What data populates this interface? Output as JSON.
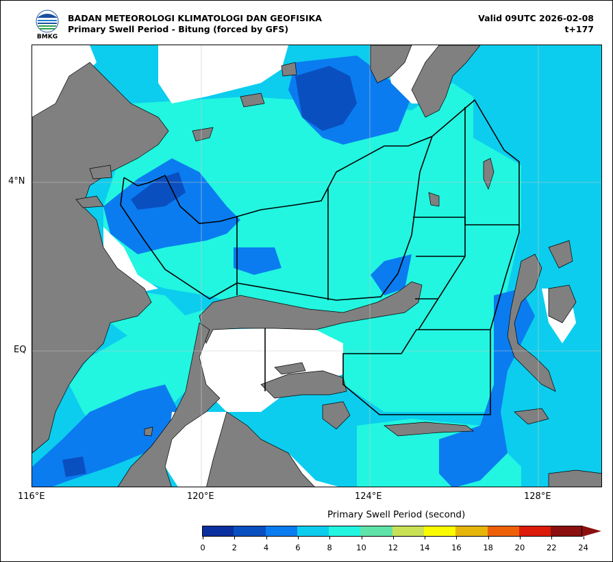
{
  "header": {
    "agency": "BADAN METEOROLOGI KLIMATOLOGI DAN GEOFISIKA",
    "subtitle": "Primary Swell Period - Bitung (forced by GFS)",
    "valid": "Valid 09UTC 2026-02-08",
    "lead": "t+177",
    "logo_text": "BMKG"
  },
  "axes": {
    "x_ticks": [
      "116°E",
      "120°E",
      "124°E",
      "128°E"
    ],
    "y_ticks": [
      "4°N",
      "EQ"
    ]
  },
  "colorbar": {
    "title": "Primary Swell Period (second)",
    "labels": [
      "0",
      "2",
      "4",
      "6",
      "8",
      "10",
      "12",
      "14",
      "16",
      "18",
      "20",
      "22",
      "24"
    ],
    "colors": [
      "#0a2f9e",
      "#0a4fc0",
      "#0a7cf0",
      "#0ccdee",
      "#22f5e0",
      "#5fe3a8",
      "#c9e155",
      "#fbfb00",
      "#e6b50a",
      "#ee6008",
      "#dc1b0b",
      "#8b0f0f"
    ]
  },
  "map_colors": {
    "land": "#808080",
    "sea_white": "#ffffff",
    "band_6_8": "#0ccdee",
    "band_8_10": "#22f5e0",
    "band_4_6": "#0a7cf0",
    "band_2_4": "#0a4fc0"
  }
}
